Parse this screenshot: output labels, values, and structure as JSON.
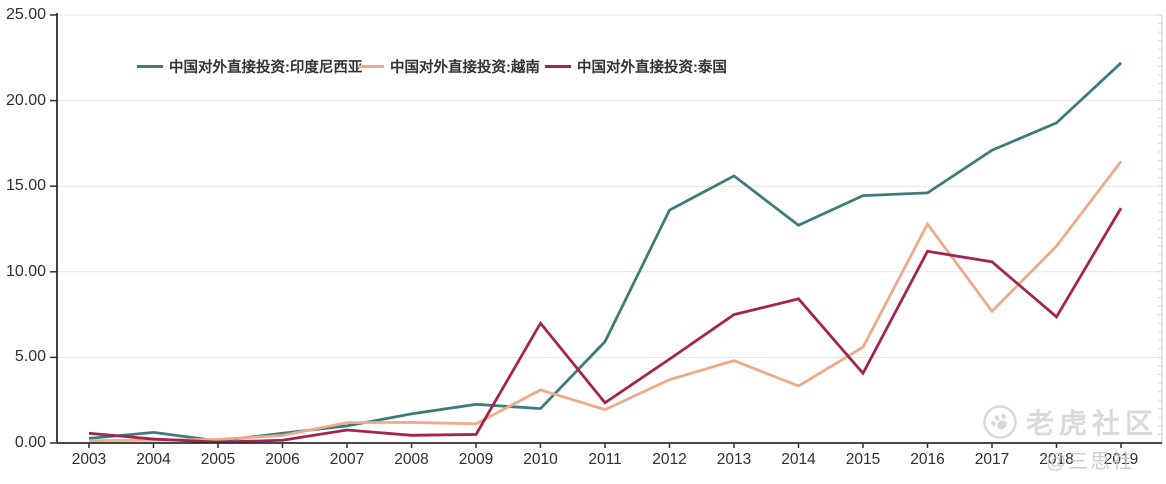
{
  "chart_data": {
    "type": "line",
    "title": "",
    "categories": [
      "2003",
      "2004",
      "2005",
      "2006",
      "2007",
      "2008",
      "2009",
      "2010",
      "2011",
      "2012",
      "2013",
      "2014",
      "2015",
      "2016",
      "2017",
      "2018",
      "2019"
    ],
    "series": [
      {
        "name": "中国对外直接投资:印度尼西亚",
        "color": "#3d7c7b",
        "values": [
          0.27,
          0.62,
          0.12,
          0.57,
          1.0,
          1.7,
          2.26,
          2.01,
          5.92,
          13.6,
          15.6,
          12.72,
          14.45,
          14.61,
          17.1,
          18.7,
          22.2
        ]
      },
      {
        "name": "中国对外直接投资:越南",
        "color": "#edab8c",
        "values": [
          0.13,
          0.17,
          0.21,
          0.44,
          1.19,
          1.2,
          1.12,
          3.1,
          1.95,
          3.7,
          4.81,
          3.33,
          5.6,
          12.79,
          7.7,
          11.5,
          16.45
        ]
      },
      {
        "name": "中国对外直接投资:泰国",
        "color": "#a42450",
        "values": [
          0.57,
          0.23,
          0.05,
          0.16,
          0.76,
          0.45,
          0.5,
          7.0,
          2.35,
          4.9,
          7.5,
          8.42,
          4.07,
          11.2,
          10.58,
          7.37,
          13.72
        ]
      }
    ],
    "ylim": [
      0,
      25
    ],
    "y_ticks": [
      {
        "label": "25.00",
        "value": 25
      },
      {
        "label": "20.00",
        "value": 20
      },
      {
        "label": "15.00",
        "value": 15
      },
      {
        "label": "10.00",
        "value": 10
      },
      {
        "label": "5.00",
        "value": 5
      },
      {
        "label": "0.00",
        "value": 0
      }
    ],
    "grid": true,
    "legend_position": "top"
  },
  "watermarks": {
    "community": "老虎社区",
    "secondary": "@三思社"
  },
  "colors": {
    "grid": "#e5e5e5",
    "axis": "#2e2e2e",
    "right_axis": "#d2d2d2",
    "tick_text": "#2f2f2f",
    "watermark": "#d9d9dd"
  }
}
